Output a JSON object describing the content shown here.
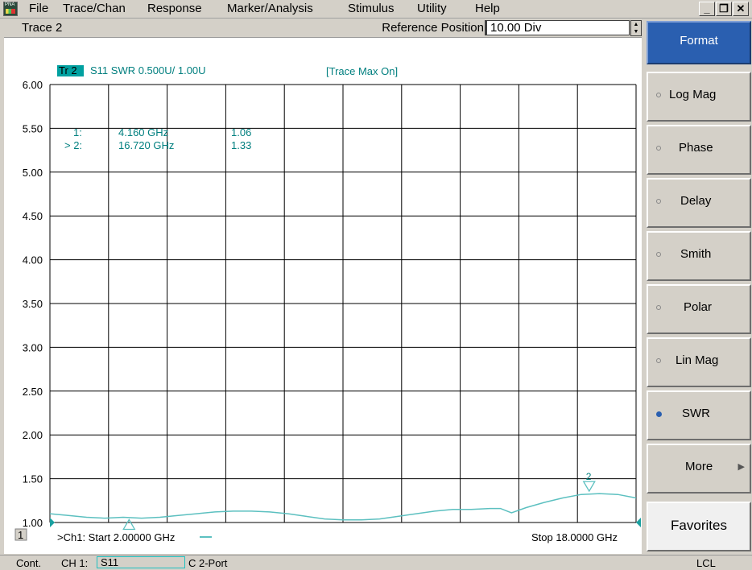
{
  "app_icon_label": "PNA",
  "menu": [
    "File",
    "Trace/Chan",
    "Response",
    "Marker/Analysis",
    "Stimulus",
    "Utility",
    "Help"
  ],
  "window_buttons": {
    "minimize": "_",
    "restore": "❐",
    "close": "✕"
  },
  "trace_title": "Trace 2",
  "reference": {
    "label": "Reference Position",
    "value": "10.00 Div"
  },
  "trace_header": {
    "badge": "Tr 2",
    "description": "S11 SWR 0.500U/  1.00U",
    "status": "[Trace Max On]"
  },
  "markers": [
    {
      "label": "1:",
      "freq": "4.160 GHz",
      "value": "1.06",
      "x_ghz": 4.16,
      "y": 1.06,
      "glyph": "△"
    },
    {
      "label": "> 2:",
      "freq": "16.720 GHz",
      "value": "1.33",
      "x_ghz": 16.72,
      "y": 1.33,
      "glyph": "▽",
      "tag": "2"
    }
  ],
  "channel_number": "1",
  "start_label": ">Ch1: Start  2.00000 GHz",
  "stop_label": "Stop  18.0000 GHz",
  "softkeys": {
    "format": "Format",
    "items": [
      {
        "label": "Log Mag",
        "selected": false
      },
      {
        "label": "Phase",
        "selected": false
      },
      {
        "label": "Delay",
        "selected": false
      },
      {
        "label": "Smith",
        "selected": false
      },
      {
        "label": "Polar",
        "selected": false
      },
      {
        "label": "Lin Mag",
        "selected": false
      },
      {
        "label": "SWR",
        "selected": true
      }
    ],
    "more": "More",
    "favorites": "Favorites"
  },
  "statusbar": {
    "mode": "Cont.",
    "channel": "CH 1:",
    "param": "S11",
    "port": "C  2-Port",
    "remote": "LCL"
  },
  "colors": {
    "trace": "#5cc0c0",
    "marker_text": "#007f7f",
    "grid": "#000000",
    "badge": "#00a0a0",
    "softkey_active": "#2a5fb0"
  },
  "chart_data": {
    "type": "line",
    "title": "",
    "xlabel": "",
    "ylabel": "",
    "xlim": [
      2.0,
      18.0
    ],
    "ylim": [
      1.0,
      6.0
    ],
    "y_ticks": [
      "6.00",
      "5.50",
      "5.00",
      "4.50",
      "4.00",
      "3.50",
      "3.00",
      "2.50",
      "2.00",
      "1.50",
      "1.00"
    ],
    "x_divisions": 10,
    "y_divisions": 10,
    "grid": true,
    "series": [
      {
        "x": [
          2.0,
          2.5,
          3.0,
          3.5,
          4.0,
          4.5,
          5.0,
          5.5,
          6.0,
          6.5,
          7.0,
          7.5,
          8.0,
          8.5,
          9.0,
          9.5,
          10.0,
          10.5,
          11.0,
          11.5,
          12.0,
          12.5,
          13.0,
          13.5,
          14.0,
          14.3,
          14.6,
          15.0,
          15.5,
          16.0,
          16.5,
          17.0,
          17.5,
          18.0
        ],
        "y": [
          1.1,
          1.08,
          1.06,
          1.05,
          1.06,
          1.05,
          1.06,
          1.08,
          1.1,
          1.12,
          1.13,
          1.13,
          1.12,
          1.1,
          1.07,
          1.04,
          1.03,
          1.03,
          1.04,
          1.07,
          1.1,
          1.13,
          1.15,
          1.15,
          1.16,
          1.16,
          1.11,
          1.17,
          1.23,
          1.28,
          1.32,
          1.33,
          1.32,
          1.28
        ]
      }
    ]
  }
}
